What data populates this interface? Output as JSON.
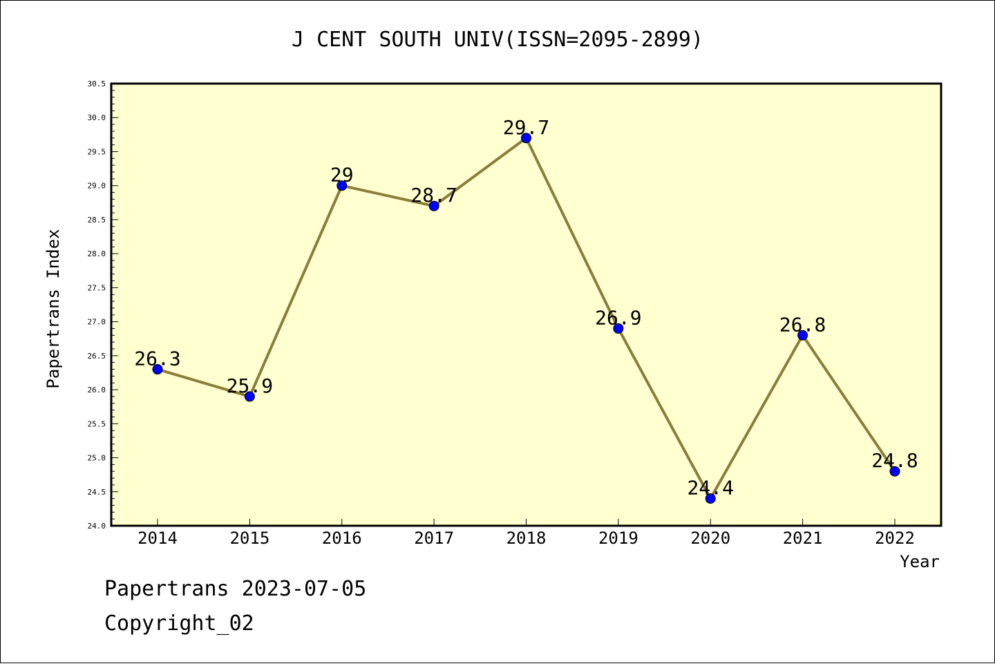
{
  "chart_data": {
    "type": "line",
    "title": "J CENT SOUTH UNIV(ISSN=2095-2899)",
    "xlabel": "Year",
    "ylabel": "Papertrans Index",
    "categories": [
      "2014",
      "2015",
      "2016",
      "2017",
      "2018",
      "2019",
      "2020",
      "2021",
      "2022"
    ],
    "series": [
      {
        "values": [
          26.3,
          25.9,
          29.0,
          28.7,
          29.7,
          26.9,
          24.4,
          26.8,
          24.8
        ],
        "labels": [
          "26.3",
          "25.9",
          "29",
          "28.7",
          "29.7",
          "26.9",
          "24.4",
          "26.8",
          "24.8"
        ]
      }
    ],
    "ylim": [
      24.0,
      30.5
    ],
    "yticks": [
      "24.0",
      "24.5",
      "25.0",
      "25.5",
      "26.0",
      "26.5",
      "27.0",
      "27.5",
      "28.0",
      "28.5",
      "29.0",
      "29.5",
      "30.0",
      "30.5"
    ],
    "grid": false,
    "legend": "none",
    "colors": {
      "plot_background": "#ffffd0",
      "line": "#8b7d3a",
      "marker": "#0000ff"
    }
  },
  "footer": {
    "line1": "Papertrans 2023-07-05",
    "line2": "Copyright_02"
  }
}
